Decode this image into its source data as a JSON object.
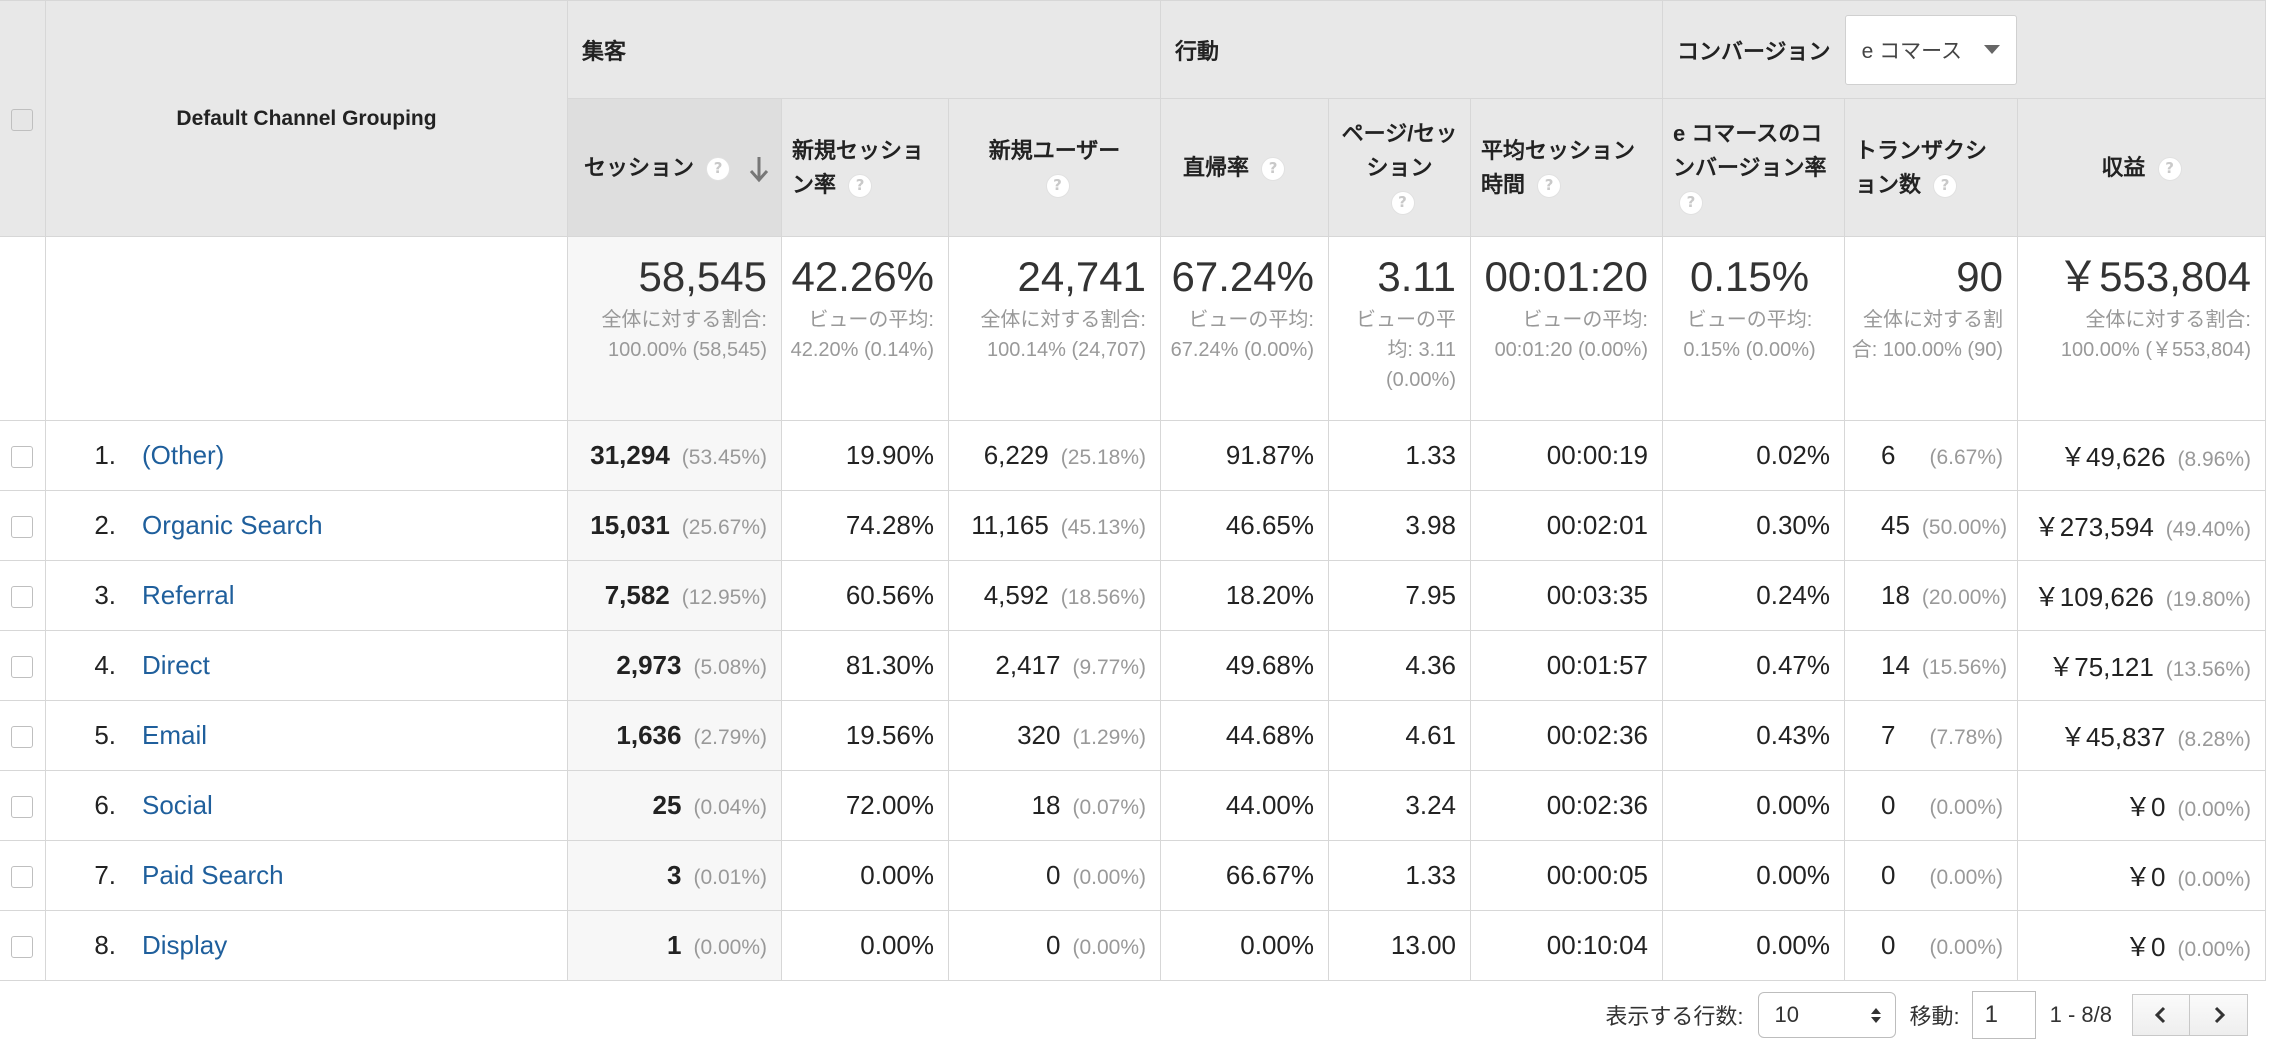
{
  "header": {
    "dimension": "Default Channel Grouping",
    "groups": {
      "acquisition": "集客",
      "behavior": "行動",
      "conversion": "コンバージョン"
    },
    "conversion_select": "e コマース",
    "help_glyph": "?"
  },
  "columns": {
    "sessions": "セッション",
    "new_session_rate": "新規セッション率",
    "new_users": "新規ユーザー",
    "bounce_rate": "直帰率",
    "pages_per_session": "ページ/セッション",
    "avg_session_duration": "平均セッション時間",
    "ecom_conversion_rate": "e コマースのコンバージョン率",
    "transactions": "トランザクション数",
    "revenue": "収益"
  },
  "totals": {
    "sessions": {
      "value": "58,545",
      "sub": "全体に対する割合: 100.00% (58,545)"
    },
    "new_session_rate": {
      "value": "42.26%",
      "sub": "ビューの平均: 42.20% (0.14%)"
    },
    "new_users": {
      "value": "24,741",
      "sub": "全体に対する割合: 100.14% (24,707)"
    },
    "bounce_rate": {
      "value": "67.24%",
      "sub": "ビューの平均: 67.24% (0.00%)"
    },
    "pages_per_session": {
      "value": "3.11",
      "sub": "ビューの平均: 3.11 (0.00%)"
    },
    "avg_session_duration": {
      "value": "00:01:20",
      "sub": "ビューの平均: 00:01:20 (0.00%)"
    },
    "ecom_conversion_rate": {
      "value": "0.15%",
      "sub": "ビューの平均: 0.15% (0.00%)"
    },
    "transactions": {
      "value": "90",
      "sub": "全体に対する割合: 100.00% (90)"
    },
    "revenue": {
      "value": "￥553,804",
      "sub": "全体に対する割合: 100.00% (￥553,804)"
    }
  },
  "rows": [
    {
      "idx": "1.",
      "channel": "(Other)",
      "sessions": "31,294",
      "sessions_pct": "(53.45%)",
      "new_session_rate": "19.90%",
      "new_users": "6,229",
      "new_users_pct": "(25.18%)",
      "bounce_rate": "91.87%",
      "pages_per_session": "1.33",
      "avg_session_duration": "00:00:19",
      "ecom_conversion_rate": "0.02%",
      "transactions": "6",
      "transactions_pct": "(6.67%)",
      "revenue": "￥49,626",
      "revenue_pct": "(8.96%)"
    },
    {
      "idx": "2.",
      "channel": "Organic Search",
      "sessions": "15,031",
      "sessions_pct": "(25.67%)",
      "new_session_rate": "74.28%",
      "new_users": "11,165",
      "new_users_pct": "(45.13%)",
      "bounce_rate": "46.65%",
      "pages_per_session": "3.98",
      "avg_session_duration": "00:02:01",
      "ecom_conversion_rate": "0.30%",
      "transactions": "45",
      "transactions_pct": "(50.00%)",
      "revenue": "￥273,594",
      "revenue_pct": "(49.40%)"
    },
    {
      "idx": "3.",
      "channel": "Referral",
      "sessions": "7,582",
      "sessions_pct": "(12.95%)",
      "new_session_rate": "60.56%",
      "new_users": "4,592",
      "new_users_pct": "(18.56%)",
      "bounce_rate": "18.20%",
      "pages_per_session": "7.95",
      "avg_session_duration": "00:03:35",
      "ecom_conversion_rate": "0.24%",
      "transactions": "18",
      "transactions_pct": "(20.00%)",
      "revenue": "￥109,626",
      "revenue_pct": "(19.80%)"
    },
    {
      "idx": "4.",
      "channel": "Direct",
      "sessions": "2,973",
      "sessions_pct": "(5.08%)",
      "new_session_rate": "81.30%",
      "new_users": "2,417",
      "new_users_pct": "(9.77%)",
      "bounce_rate": "49.68%",
      "pages_per_session": "4.36",
      "avg_session_duration": "00:01:57",
      "ecom_conversion_rate": "0.47%",
      "transactions": "14",
      "transactions_pct": "(15.56%)",
      "revenue": "￥75,121",
      "revenue_pct": "(13.56%)"
    },
    {
      "idx": "5.",
      "channel": "Email",
      "sessions": "1,636",
      "sessions_pct": "(2.79%)",
      "new_session_rate": "19.56%",
      "new_users": "320",
      "new_users_pct": "(1.29%)",
      "bounce_rate": "44.68%",
      "pages_per_session": "4.61",
      "avg_session_duration": "00:02:36",
      "ecom_conversion_rate": "0.43%",
      "transactions": "7",
      "transactions_pct": "(7.78%)",
      "revenue": "￥45,837",
      "revenue_pct": "(8.28%)"
    },
    {
      "idx": "6.",
      "channel": "Social",
      "sessions": "25",
      "sessions_pct": "(0.04%)",
      "new_session_rate": "72.00%",
      "new_users": "18",
      "new_users_pct": "(0.07%)",
      "bounce_rate": "44.00%",
      "pages_per_session": "3.24",
      "avg_session_duration": "00:02:36",
      "ecom_conversion_rate": "0.00%",
      "transactions": "0",
      "transactions_pct": "(0.00%)",
      "revenue": "￥0",
      "revenue_pct": "(0.00%)"
    },
    {
      "idx": "7.",
      "channel": "Paid Search",
      "sessions": "3",
      "sessions_pct": "(0.01%)",
      "new_session_rate": "0.00%",
      "new_users": "0",
      "new_users_pct": "(0.00%)",
      "bounce_rate": "66.67%",
      "pages_per_session": "1.33",
      "avg_session_duration": "00:00:05",
      "ecom_conversion_rate": "0.00%",
      "transactions": "0",
      "transactions_pct": "(0.00%)",
      "revenue": "￥0",
      "revenue_pct": "(0.00%)"
    },
    {
      "idx": "8.",
      "channel": "Display",
      "sessions": "1",
      "sessions_pct": "(0.00%)",
      "new_session_rate": "0.00%",
      "new_users": "0",
      "new_users_pct": "(0.00%)",
      "bounce_rate": "0.00%",
      "pages_per_session": "13.00",
      "avg_session_duration": "00:10:04",
      "ecom_conversion_rate": "0.00%",
      "transactions": "0",
      "transactions_pct": "(0.00%)",
      "revenue": "￥0",
      "revenue_pct": "(0.00%)"
    }
  ],
  "pagination": {
    "rows_label": "表示する行数:",
    "rows_value": "10",
    "goto_label": "移動:",
    "goto_value": "1",
    "range": "1 - 8/8"
  },
  "icons": {
    "sort": "arrow-down-icon",
    "help": "help-icon",
    "prev": "chevron-left-icon",
    "next": "chevron-right-icon"
  }
}
